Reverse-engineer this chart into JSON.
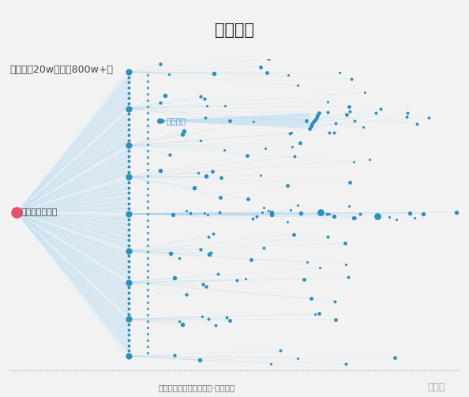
{
  "title": "博文传播",
  "subtitle": "互动量近20w；影响800w+人",
  "footer": "数据分析工具：识微科技·识微商情",
  "watermark": "嗡神游",
  "source_label": "我和基友的日常",
  "secondary_label": "谷大白话",
  "bg_color": "#f2f2f2",
  "plot_bg": "#ffffff",
  "title_bg": "#ebebeb",
  "node_color": "#2b8fc0",
  "line_color": "#aad4ea",
  "fan_color": "#c8e2f2",
  "source_color": "#e8506a"
}
